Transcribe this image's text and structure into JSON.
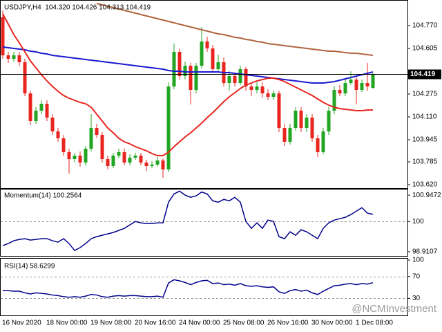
{
  "chart_data": [
    {
      "type": "candlestick",
      "title": "USDJPY,H4  104.320 104.426 104.313 104.419",
      "categories": [
        "16 Nov 2020",
        null,
        null,
        null,
        null,
        null,
        null,
        null,
        "18 Nov 00:00",
        null,
        null,
        null,
        null,
        null,
        null,
        null,
        "19 Nov 08:00",
        null,
        null,
        null,
        null,
        null,
        null,
        null,
        "20 Nov 16:00",
        null,
        null,
        null,
        null,
        null,
        null,
        null,
        "24 Nov 00:00",
        null,
        null,
        null,
        null,
        null,
        null,
        null,
        "25 Nov 08:00",
        null,
        null,
        null,
        null,
        null,
        null,
        null,
        "26 Nov 16:00",
        null,
        null,
        null,
        null,
        null,
        null,
        null,
        "30 Nov 00:00",
        null,
        null,
        null,
        null,
        null,
        null,
        null,
        "1 Dec 08:00",
        null,
        null,
        null
      ],
      "open": [
        104.83,
        104.555,
        104.53,
        104.555,
        104.505,
        104.28,
        104.08,
        104.155,
        104.205,
        104.105,
        104.005,
        103.955,
        103.855,
        103.805,
        103.83,
        103.78,
        103.88,
        104.03,
        103.98,
        103.805,
        103.755,
        103.83,
        103.855,
        103.78,
        103.815,
        103.83,
        103.78,
        103.755,
        103.765,
        103.795,
        103.73,
        104.33,
        104.58,
        104.405,
        104.48,
        104.305,
        104.48,
        104.655,
        104.605,
        104.455,
        104.505,
        104.355,
        104.405,
        104.355,
        104.455,
        104.33,
        104.305,
        104.33,
        104.28,
        104.255,
        104.28,
        104.03,
        103.93,
        104.03,
        104.155,
        104.03,
        104.105,
        103.955,
        103.855,
        104.005,
        104.155,
        104.305,
        104.28,
        104.355,
        104.38,
        104.305,
        104.355,
        104.32
      ],
      "high": [
        104.88,
        104.58,
        104.58,
        104.58,
        104.53,
        104.3,
        104.18,
        104.23,
        104.23,
        104.13,
        104.03,
        103.98,
        103.88,
        103.85,
        103.86,
        103.9,
        104.13,
        104.06,
        104.0,
        103.83,
        103.85,
        103.88,
        103.88,
        103.84,
        103.85,
        103.85,
        103.8,
        103.79,
        103.82,
        103.81,
        104.36,
        104.64,
        104.6,
        104.51,
        104.5,
        104.5,
        104.76,
        104.69,
        104.63,
        104.56,
        104.54,
        104.44,
        104.43,
        104.48,
        104.47,
        104.36,
        104.36,
        104.36,
        104.31,
        104.3,
        104.3,
        104.06,
        104.06,
        104.18,
        104.18,
        104.13,
        104.13,
        103.98,
        104.03,
        104.18,
        104.33,
        104.34,
        104.38,
        104.44,
        104.4,
        104.38,
        104.5,
        104.426
      ],
      "low": [
        104.53,
        104.5,
        104.51,
        104.48,
        104.26,
        104.05,
        104.06,
        104.13,
        104.08,
        103.98,
        103.93,
        103.83,
        103.7,
        103.78,
        103.75,
        103.76,
        103.86,
        103.96,
        103.78,
        103.73,
        103.74,
        103.81,
        103.76,
        103.76,
        103.8,
        103.76,
        103.72,
        103.74,
        103.75,
        103.67,
        103.71,
        104.31,
        104.38,
        104.38,
        104.2,
        104.28,
        104.46,
        104.58,
        104.43,
        104.43,
        104.33,
        104.3,
        104.33,
        104.34,
        104.3,
        104.26,
        104.28,
        104.25,
        104.23,
        104.23,
        104.0,
        103.9,
        103.91,
        104.01,
        104.0,
        104.0,
        103.93,
        103.82,
        103.84,
        103.98,
        104.13,
        104.26,
        104.26,
        104.34,
        104.2,
        104.29,
        104.3,
        104.313
      ],
      "close": [
        104.555,
        104.53,
        104.555,
        104.505,
        104.28,
        104.08,
        104.155,
        104.205,
        104.105,
        104.005,
        103.955,
        103.855,
        103.805,
        103.83,
        103.78,
        103.88,
        104.03,
        103.98,
        103.805,
        103.755,
        103.83,
        103.855,
        103.78,
        103.815,
        103.83,
        103.78,
        103.755,
        103.765,
        103.795,
        103.73,
        104.33,
        104.58,
        104.405,
        104.48,
        104.305,
        104.48,
        104.655,
        104.605,
        104.455,
        104.505,
        104.355,
        104.405,
        104.355,
        104.455,
        104.33,
        104.305,
        104.33,
        104.28,
        104.255,
        104.28,
        104.03,
        103.93,
        104.03,
        104.155,
        104.03,
        104.105,
        103.955,
        103.855,
        104.005,
        104.155,
        104.305,
        104.28,
        104.355,
        104.38,
        104.305,
        104.355,
        104.33,
        104.419
      ],
      "up_color": "#22a522",
      "down_color": "#e8261f",
      "series": [
        {
          "color": "#b0653f",
          "values": [
            null,
            null,
            null,
            null,
            null,
            null,
            null,
            null,
            null,
            null,
            null,
            null,
            null,
            null,
            null,
            null,
            null,
            104.93,
            104.92,
            104.91,
            104.9,
            104.89,
            104.88,
            104.87,
            104.86,
            104.85,
            104.84,
            104.83,
            104.82,
            104.81,
            104.8,
            104.79,
            104.78,
            104.77,
            104.76,
            104.75,
            104.74,
            104.73,
            104.72,
            104.71,
            104.705,
            104.695,
            104.685,
            104.68,
            104.67,
            104.665,
            104.655,
            104.65,
            104.64,
            104.635,
            104.63,
            104.625,
            104.62,
            104.615,
            104.61,
            104.605,
            104.6,
            104.595,
            104.59,
            104.585,
            104.585,
            104.58,
            104.575,
            104.57,
            104.57,
            104.565,
            104.56,
            104.555
          ]
        },
        {
          "color": "#1a1ad0",
          "values": [
            104.615,
            104.61,
            104.605,
            104.6,
            104.595,
            104.585,
            104.58,
            104.57,
            104.565,
            104.555,
            104.55,
            104.545,
            104.54,
            104.535,
            104.53,
            104.525,
            104.52,
            104.515,
            104.51,
            104.505,
            104.5,
            104.495,
            104.49,
            104.485,
            104.48,
            104.475,
            104.47,
            104.465,
            104.46,
            104.455,
            104.445,
            104.44,
            104.44,
            104.435,
            104.435,
            104.435,
            104.435,
            104.435,
            104.435,
            104.435,
            104.43,
            104.43,
            104.425,
            104.42,
            104.415,
            104.41,
            104.405,
            104.4,
            104.395,
            104.39,
            104.385,
            104.38,
            104.375,
            104.37,
            104.365,
            104.36,
            104.355,
            104.355,
            104.355,
            104.36,
            104.365,
            104.375,
            104.385,
            104.395,
            104.405,
            104.415,
            104.425,
            104.435
          ]
        },
        {
          "color": "#e8261f",
          "values": [
            104.855,
            104.78,
            104.705,
            104.645,
            104.58,
            104.515,
            104.465,
            104.415,
            104.37,
            104.33,
            104.295,
            104.265,
            104.245,
            104.23,
            104.215,
            104.205,
            104.18,
            104.13,
            104.08,
            104.03,
            103.995,
            103.955,
            103.93,
            103.915,
            103.895,
            103.88,
            103.865,
            103.845,
            103.83,
            103.83,
            103.855,
            103.895,
            103.93,
            103.965,
            103.995,
            104.03,
            104.065,
            104.105,
            104.14,
            104.18,
            104.22,
            104.255,
            104.285,
            104.315,
            104.34,
            104.355,
            104.37,
            104.38,
            104.39,
            104.39,
            104.38,
            104.365,
            104.345,
            104.325,
            104.305,
            104.285,
            104.265,
            104.24,
            104.215,
            104.195,
            104.18,
            104.17,
            104.165,
            104.16,
            104.155,
            104.155,
            104.16,
            104.16
          ]
        }
      ],
      "ylim": [
        103.595,
        104.945
      ],
      "yticks": [
        {
          "value": 104.77,
          "label": "104.770"
        },
        104.605,
        104.275,
        {
          "value": 104.11,
          "label": "104.110"
        },
        103.945,
        103.785,
        {
          "value": 103.62,
          "label": "103.620"
        }
      ],
      "last_price": 104.419
    },
    {
      "type": "line",
      "title": "Momentum(14) 100.2564",
      "series": [
        {
          "color": "#00008b",
          "values": [
            99.132,
            99.206,
            99.306,
            99.355,
            99.38,
            99.33,
            99.355,
            99.38,
            99.38,
            99.306,
            99.256,
            99.38,
            99.206,
            98.958,
            99.058,
            99.206,
            99.38,
            99.454,
            99.504,
            99.554,
            99.603,
            99.678,
            99.752,
            99.876,
            100.0,
            99.95,
            99.926,
            99.926,
            99.95,
            99.95,
            100.694,
            100.992,
            101.09,
            100.95,
            100.87,
            100.92,
            101.06,
            100.99,
            100.744,
            100.694,
            100.794,
            100.744,
            100.868,
            100.694,
            100.0,
            99.752,
            99.95,
            99.752,
            100.05,
            100.0,
            99.454,
            99.38,
            99.628,
            99.504,
            99.702,
            99.628,
            99.504,
            99.38,
            99.752,
            99.95,
            100.05,
            100.1,
            100.15,
            100.248,
            100.372,
            100.496,
            100.3,
            100.2564
          ]
        }
      ],
      "ylim": [
        98.76,
        101.15
      ],
      "yticks": [
        100.9472,
        100,
        98.9107
      ],
      "levels": [
        100
      ]
    },
    {
      "type": "line",
      "title": "RSI(14) 58.6299",
      "series": [
        {
          "color": "#00008b",
          "values": [
            44,
            44,
            43,
            43,
            40,
            38,
            40,
            39,
            38,
            36,
            35,
            33,
            32,
            33,
            32,
            34,
            37,
            36,
            33,
            32,
            34,
            35,
            34,
            35,
            35,
            34,
            33,
            33,
            34,
            32,
            58,
            64,
            62,
            59,
            55,
            59,
            62,
            63,
            57,
            58,
            55,
            56,
            54,
            57,
            53,
            52,
            53,
            51,
            50,
            51,
            42,
            39,
            44,
            46,
            43,
            45,
            40,
            37,
            43,
            48,
            53,
            54,
            56,
            57,
            55,
            57,
            56,
            58.6299
          ]
        }
      ],
      "ylim": [
        0,
        100
      ],
      "yticks": [
        100,
        70,
        30
      ],
      "levels": [
        70,
        30
      ]
    }
  ],
  "watermark": "@NCMInvestment"
}
